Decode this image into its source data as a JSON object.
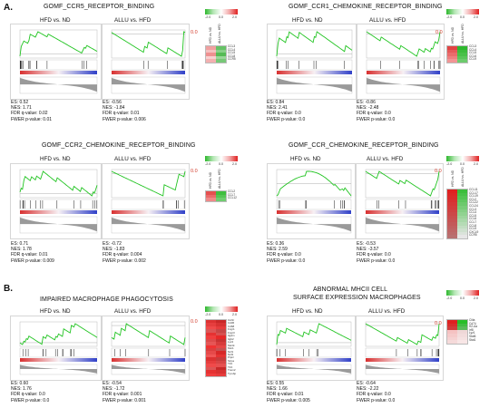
{
  "sections": {
    "A": "A.",
    "B": "B."
  },
  "panels": [
    {
      "title": "GOMF_CCR5_RECEPTOR_BINDING",
      "comparisons": [
        {
          "label": "HFD vs. ND",
          "es": "ES: 0.52",
          "nes": "NES: 1.71",
          "fdr": "FDR q-value: 0.02",
          "fwer": "FWER p-value: 0.01"
        },
        {
          "label": "ALLU vs. HFD",
          "es": "ES: -0.56",
          "nes": "NES: -1.84",
          "fdr": "FDR q-value: 0.01",
          "fwer": "FWER p-value: 0.006"
        }
      ],
      "zero": "0.0",
      "heatmap_cols": [
        "HFD vs. ND",
        "ALLU vs. HFD"
      ],
      "genes": [
        "CCL3",
        "CCL4",
        "CCL5",
        "CCL8",
        "CCR5"
      ]
    },
    {
      "title": "GOMF_CCR1_CHEMOKINE_RECEPTOR_BINDING",
      "comparisons": [
        {
          "label": "HFD vs. ND",
          "es": "ES: 0.84",
          "nes": "NES: 2.41",
          "fdr": "FDR q-value: 0.0",
          "fwer": "FWER p-value: 0.0"
        },
        {
          "label": "ALLU vs. HFD",
          "es": "ES: -0.86",
          "nes": "NES: -2.48",
          "fdr": "FDR q-value: 0.0",
          "fwer": "FWER p-value: 0.0"
        }
      ],
      "zero": "0.0",
      "heatmap_cols": [
        "HFD vs. ND",
        "ALLU vs. HFD"
      ],
      "genes": [
        "CCL3",
        "CCL4",
        "CCL5",
        "CCL6",
        "CCL9"
      ]
    },
    {
      "title": "GOMF_CCR2_CHEMOKINE_RECEPTOR_BINDING",
      "comparisons": [
        {
          "label": "HFD vs. ND",
          "es": "ES: 0.71",
          "nes": "NES: 1.78",
          "fdr": "FDR q-value: 0.01",
          "fwer": "FWER p-value: 0.009"
        },
        {
          "label": "ALLU vs. HFD",
          "es": "ES: -0.72",
          "nes": "NES: -1.83",
          "fdr": "FDR q-value: 0.004",
          "fwer": "FWER p-value: 0.002"
        }
      ],
      "zero": "0.0",
      "heatmap_cols": [
        "HFD vs. ND",
        "ALLU vs. HFD"
      ],
      "genes": [
        "CCL2",
        "CCL7",
        "CCL12"
      ]
    },
    {
      "title": "GOMF_CCR_CHEMOKINE_RECEPTOR_BINDING",
      "comparisons": [
        {
          "label": "HFD vs. ND",
          "es": "ES: 0.36",
          "nes": "NES: 2.59",
          "fdr": "FDR q-value: 0.0",
          "fwer": "FWER p-value: 0.0"
        },
        {
          "label": "ALLU vs. HFD",
          "es": "ES: -0.53",
          "nes": "NES: -3.57",
          "fdr": "FDR q-value: 0.0",
          "fwer": "FWER p-value: 0.0"
        }
      ],
      "zero": "0.0",
      "heatmap_cols": [
        "HFD vs. ND",
        "ALLU vs. HFD"
      ],
      "genes": [
        "CCL11",
        "CCL17",
        "CCL19",
        "CCL2",
        "CCL22",
        "CCL24",
        "CCL3",
        "CCL4",
        "CCL5",
        "CCL6",
        "CCL7",
        "CCL8",
        "CCL9",
        "CXCL9",
        "CCR5"
      ]
    },
    {
      "title": "IMPAIRED MACROPHAGE PHAGOCYTOSIS",
      "comparisons": [
        {
          "label": "HFD vs. ND",
          "es": "ES: 0.60",
          "nes": "NES: 1.76",
          "fdr": "FDR q-value: 0.0",
          "fwer": "FWER p-value: 0.0"
        },
        {
          "label": "ALLU vs. HFD",
          "es": "ES: -0.54",
          "nes": "NES: -1.72",
          "fdr": "FDR q-value: 0.001",
          "fwer": "FWER p-value: 0.001"
        }
      ],
      "zero": "0.0",
      "heatmap_cols": [
        "HFD vs. ND",
        "ALLU vs. HFD"
      ],
      "genes": [
        "Csf1r",
        "Cd36",
        "Cd68",
        "Fcgr1",
        "Fcgr3",
        "Itgam",
        "Itgb2",
        "Lyz2",
        "Mertk",
        "Msr1",
        "Ncf1",
        "Ncf2",
        "Ptprc",
        "Sirpa",
        "Tlr2",
        "Tlr4",
        "Trem2",
        "Tyrobp"
      ]
    },
    {
      "title": "ABNORMAL MHCII CELL SURFACE EXPRESSION MACROPHAGES",
      "title_lines": [
        "ABNORMAL MHCII CELL",
        "SURFACE EXPRESSION MACROPHAGES"
      ],
      "comparisons": [
        {
          "label": "HFD vs. ND",
          "es": "ES: 0.55",
          "nes": "NES: 1.66",
          "fdr": "FDR q-value: 0.01",
          "fwer": "FWER p-value: 0.005"
        },
        {
          "label": "ALLU vs. HFD",
          "es": "ES: -0.64",
          "nes": "NES: -2.22",
          "fdr": "FDR q-value: 0.0",
          "fwer": "FWER p-value: 0.0"
        }
      ],
      "zero": "0.0",
      "heatmap_cols": [
        "HFD vs. ND",
        "ALLU vs. HFD"
      ],
      "genes": [
        "Ciita",
        "Cd74",
        "H2-Aa",
        "Irf8",
        "Lyz1",
        "Stat6",
        "Stat1"
      ]
    }
  ],
  "scale": {
    "min": "-2.0",
    "mid": "0.0",
    "max": "2.0"
  },
  "colors": {
    "curve": "#22c422",
    "up": "#e02020",
    "down": "#2eb82e",
    "pos_bar": "#d83030",
    "neg_bar": "#3040c8",
    "zero_label": "#d23b2b"
  }
}
